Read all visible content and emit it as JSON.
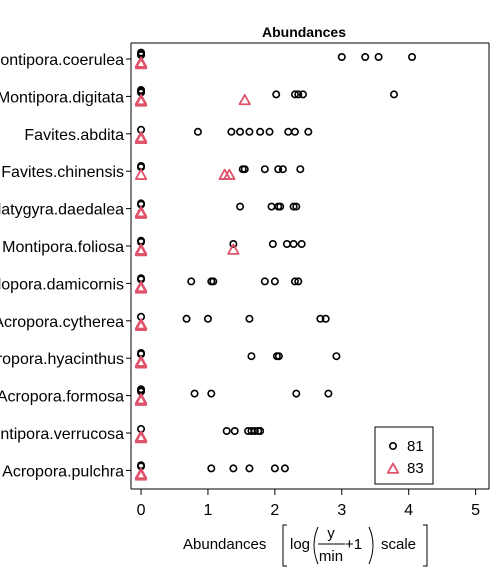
{
  "chart_data": {
    "type": "scatter",
    "title": "Abundances",
    "xlabel": "Abundances",
    "xlabel_formula": {
      "fn": "log",
      "numerator": "y",
      "denominator": "min",
      "plus": "+1",
      "suffix": "scale"
    },
    "xlim": [
      -0.15,
      5.2
    ],
    "x_ticks": [
      "0",
      "1",
      "2",
      "3",
      "4",
      "5"
    ],
    "categories": [
      "Montipora.coerulea",
      "Montipora.digitata",
      "Favites.abdita",
      "Favites.chinensis",
      "Platygyra.daedalea",
      "Montipora.foliosa",
      "Pocillopora.damicornis",
      "Acropora.cytherea",
      "Acropora.hyacinthus",
      "Acropora.formosa",
      "Montipora.verrucosa",
      "Acropora.pulchra"
    ],
    "legend_position": "bottom-right",
    "series": [
      {
        "name": "81",
        "color": "#000000",
        "marker": "circle",
        "points": [
          {
            "cat": 0,
            "values": [
              0,
              0,
              0,
              0,
              0,
              3.0,
              3.35,
              3.55,
              4.05
            ]
          },
          {
            "cat": 1,
            "values": [
              0,
              0,
              0,
              0,
              2.02,
              2.3,
              2.35,
              2.42,
              3.78
            ]
          },
          {
            "cat": 2,
            "values": [
              0,
              0.85,
              1.35,
              1.48,
              1.62,
              1.78,
              1.92,
              2.2,
              2.3,
              2.5
            ]
          },
          {
            "cat": 3,
            "values": [
              0,
              0,
              1.52,
              1.55,
              1.85,
              2.05,
              2.12,
              2.38
            ]
          },
          {
            "cat": 4,
            "values": [
              0,
              0,
              1.48,
              1.95,
              2.05,
              2.08,
              2.28,
              2.32
            ]
          },
          {
            "cat": 5,
            "values": [
              0,
              0,
              1.38,
              1.97,
              2.18,
              2.28,
              2.4
            ]
          },
          {
            "cat": 6,
            "values": [
              0,
              0,
              0.75,
              1.05,
              1.08,
              1.85,
              2.0,
              2.3,
              2.35
            ]
          },
          {
            "cat": 7,
            "values": [
              0,
              0.68,
              1.0,
              1.62,
              2.68,
              2.76
            ]
          },
          {
            "cat": 8,
            "values": [
              0,
              0,
              1.65,
              2.03,
              2.06,
              2.92
            ]
          },
          {
            "cat": 9,
            "values": [
              0,
              0,
              0,
              0.8,
              1.05,
              2.32,
              2.8
            ]
          },
          {
            "cat": 10,
            "values": [
              0,
              1.28,
              1.4,
              1.6,
              1.65,
              1.7,
              1.75,
              1.78
            ]
          },
          {
            "cat": 11,
            "values": [
              0,
              0,
              1.05,
              1.38,
              1.62,
              2.0,
              2.15
            ]
          }
        ]
      },
      {
        "name": "83",
        "color": "#DF536B",
        "marker": "triangle",
        "points": [
          {
            "cat": 0,
            "values": [
              0,
              0,
              0
            ]
          },
          {
            "cat": 1,
            "values": [
              0,
              0,
              1.55
            ]
          },
          {
            "cat": 2,
            "values": [
              0,
              0,
              0
            ]
          },
          {
            "cat": 3,
            "values": [
              0,
              1.25,
              1.32
            ]
          },
          {
            "cat": 4,
            "values": [
              0,
              0,
              0
            ]
          },
          {
            "cat": 5,
            "values": [
              0,
              0,
              1.38
            ]
          },
          {
            "cat": 6,
            "values": [
              0,
              0,
              0
            ]
          },
          {
            "cat": 7,
            "values": [
              0,
              0,
              0
            ]
          },
          {
            "cat": 8,
            "values": [
              0,
              0,
              0
            ]
          },
          {
            "cat": 9,
            "values": [
              0,
              0,
              0
            ]
          },
          {
            "cat": 10,
            "values": [
              0,
              0,
              0
            ]
          },
          {
            "cat": 11,
            "values": [
              0,
              0,
              0
            ]
          }
        ]
      }
    ]
  }
}
